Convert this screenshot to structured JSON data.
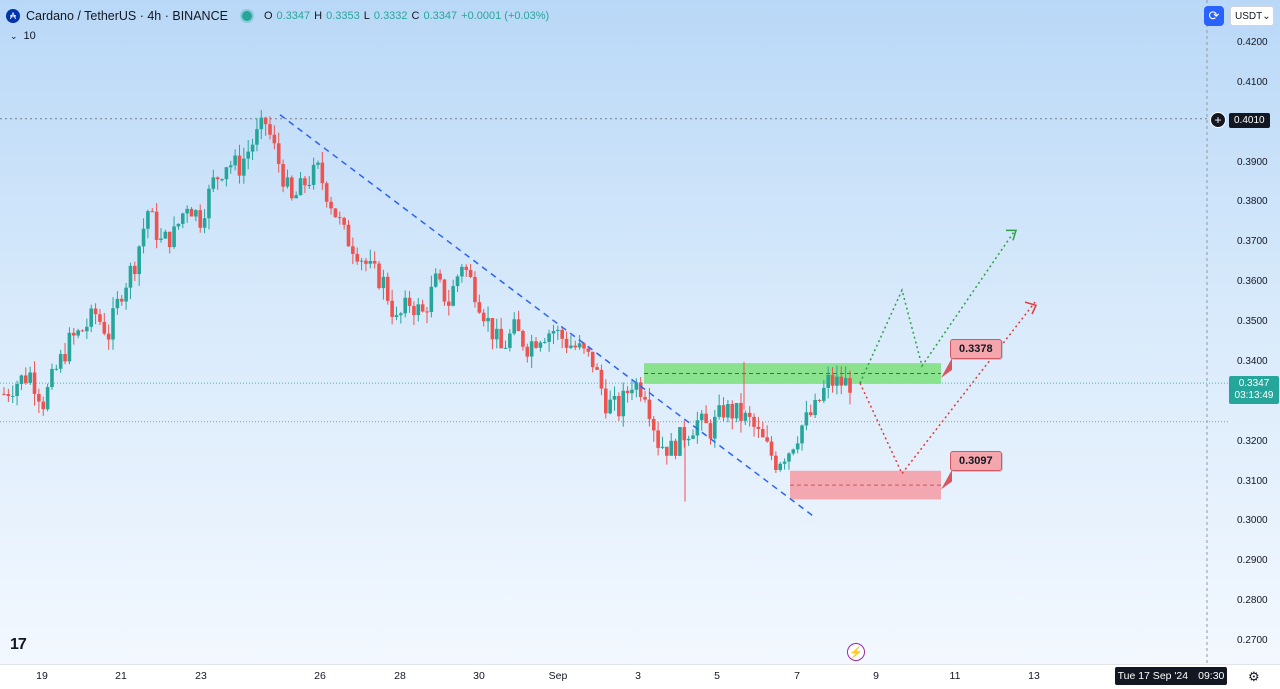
{
  "header": {
    "symbol": "Cardano / TetherUS · 4h · BINANCE",
    "o_label": "O",
    "o_value": "0.3347",
    "h_label": "H",
    "h_value": "0.3353",
    "l_label": "L",
    "l_value": "0.3332",
    "c_label": "C",
    "c_value": "0.3347",
    "change": "+0.0001 (+0.03%)",
    "volume_toggle": "10"
  },
  "top_right": {
    "currency": "USDT"
  },
  "crosshair_price": "0.4010",
  "current_price": {
    "price": "0.3347",
    "countdown": "03:13:49"
  },
  "date_badge": {
    "date": "Tue 17 Sep '24",
    "time": "09:30"
  },
  "zones": {
    "resistance_label": "0.3378",
    "support_label": "0.3097"
  },
  "colors": {
    "up": "#26a69a",
    "down": "#ef5350",
    "trendline": "#2962ff",
    "green_zone": "#7be07b",
    "red_zone": "#f4a0a8"
  },
  "chart_data": {
    "type": "candlestick",
    "symbol": "Cardano / TetherUS",
    "interval": "4h",
    "exchange": "BINANCE",
    "y_ticks": [
      "0.4200",
      "0.4100",
      "0.4010",
      "0.3900",
      "0.3800",
      "0.3700",
      "0.3600",
      "0.3500",
      "0.3400",
      "0.3300",
      "0.3200",
      "0.3100",
      "0.3000",
      "0.2900",
      "0.2800",
      "0.2700"
    ],
    "x_ticks": [
      "19",
      "21",
      "23",
      "26",
      "28",
      "30",
      "Sep",
      "3",
      "5",
      "7",
      "9",
      "11",
      "13"
    ],
    "ylim": [
      0.2675,
      0.425
    ],
    "price_path": [
      0.332,
      0.335,
      0.337,
      0.33,
      0.338,
      0.345,
      0.348,
      0.352,
      0.347,
      0.358,
      0.365,
      0.378,
      0.37,
      0.372,
      0.38,
      0.376,
      0.385,
      0.39,
      0.389,
      0.395,
      0.4,
      0.39,
      0.38,
      0.385,
      0.388,
      0.38,
      0.372,
      0.368,
      0.363,
      0.36,
      0.35,
      0.355,
      0.352,
      0.36,
      0.355,
      0.365,
      0.358,
      0.35,
      0.343,
      0.348,
      0.344,
      0.347,
      0.348,
      0.345,
      0.343,
      0.34,
      0.33,
      0.328,
      0.335,
      0.333,
      0.32,
      0.318,
      0.322,
      0.325,
      0.323,
      0.328,
      0.327,
      0.325,
      0.32,
      0.315,
      0.318,
      0.324,
      0.328,
      0.335,
      0.3347
    ],
    "resistance_zone": [
      0.3345,
      0.3397
    ],
    "support_zone": [
      0.3055,
      0.3127
    ],
    "trendline": [
      [
        0.402,
        0.301
      ]
    ],
    "projection_green": [
      0.3347,
      0.358,
      0.339,
      0.373
    ],
    "projection_red": [
      0.3347,
      0.312,
      0.355
    ],
    "grid": true
  }
}
